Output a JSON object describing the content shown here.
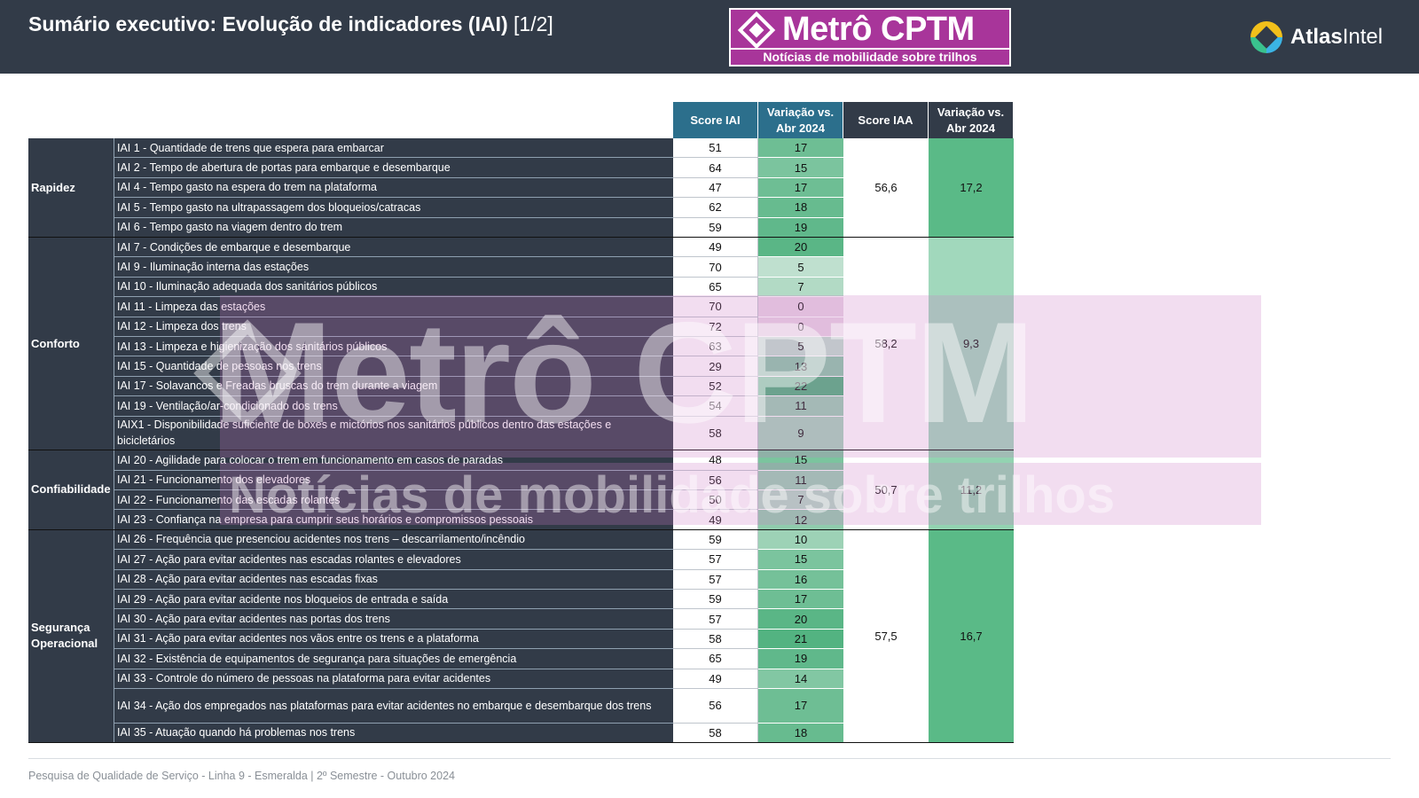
{
  "header": {
    "title": "Sumário executivo: Evolução de indicadores (IAI)",
    "page": "[1/2]"
  },
  "logos": {
    "metro_name": "Metrô CPTM",
    "metro_sub": "Notícias de mobilidade sobre trilhos",
    "atlas_bold": "Atlas",
    "atlas_rest": "Intel"
  },
  "columns": {
    "score_iai": "Score IAI",
    "var_iai": "Variação vs. Abr 2024",
    "score_iaa": "Score IAA",
    "var_iaa": "Variação vs. Abr 2024"
  },
  "groups": [
    {
      "name": "Rapidez",
      "iaa": "56,6",
      "iaa_var": "17,2",
      "iaa_color": "#5aba87",
      "rows": [
        {
          "label": "IAI 1 - Quantidade de trens que espera para embarcar",
          "score": "51",
          "var": "17"
        },
        {
          "label": "IAI 2 - Tempo de abertura de portas para embarque e desembarque",
          "score": "64",
          "var": "15"
        },
        {
          "label": "IAI 4 - Tempo gasto na espera do trem na plataforma",
          "score": "47",
          "var": "17"
        },
        {
          "label": "IAI 5 - Tempo gasto na ultrapassagem dos bloqueios/catracas",
          "score": "62",
          "var": "18"
        },
        {
          "label": "IAI 6 - Tempo gasto na viagem dentro do trem",
          "score": "59",
          "var": "19"
        }
      ]
    },
    {
      "name": "Conforto",
      "iaa": "58,2",
      "iaa_var": "9,3",
      "iaa_color": "#a1d8bc",
      "rows": [
        {
          "label": "IAI 7 - Condições de embarque e desembarque",
          "score": "49",
          "var": "20"
        },
        {
          "label": "IAI 9 - Iluminação interna das estações",
          "score": "70",
          "var": "5"
        },
        {
          "label": "IAI 10 - Iluminação adequada dos sanitários públicos",
          "score": "65",
          "var": "7"
        },
        {
          "label": "IAI 11 - Limpeza das estações",
          "score": "70",
          "var": "0"
        },
        {
          "label": "IAI 12 - Limpeza dos trens",
          "score": "72",
          "var": "0"
        },
        {
          "label": "IAI 13 - Limpeza e higienização dos sanitários públicos",
          "score": "63",
          "var": "5"
        },
        {
          "label": "IAI 15 - Quantidade de pessoas nos trens",
          "score": "29",
          "var": "13"
        },
        {
          "label": "IAI 17 - Solavancos e Freadas bruscas do trem durante a viagem",
          "score": "52",
          "var": "22"
        },
        {
          "label": "IAI 19 - Ventilação/ar-condicionado dos trens",
          "score": "54",
          "var": "11"
        },
        {
          "label": "IAIX1 - Disponibilidade suficiente de boxes e mictórios nos sanitários públicos dentro das estações e bicicletários",
          "score": "58",
          "var": "9",
          "tall": true
        }
      ]
    },
    {
      "name": "Confiabilidade",
      "iaa": "50,7",
      "iaa_var": "11,2",
      "iaa_color": "#93d3b1",
      "rows": [
        {
          "label": "IAI 20 - Agilidade para colocar o trem em funcionamento em casos de paradas",
          "score": "48",
          "var": "15"
        },
        {
          "label": "IAI 21 - Funcionamento dos elevadores",
          "score": "56",
          "var": "11"
        },
        {
          "label": "IAI 22 - Funcionamento das escadas rolantes",
          "score": "50",
          "var": "7"
        },
        {
          "label": "IAI 23 - Confiança na empresa para cumprir seus horários e compromissos pessoais",
          "score": "49",
          "var": "12"
        }
      ]
    },
    {
      "name": "Segurança Operacional",
      "iaa": "57,5",
      "iaa_var": "16,7",
      "iaa_color": "#5aba87",
      "rows": [
        {
          "label": "IAI 26 - Frequência que presenciou acidentes nos trens – descarrilamento/incêndio",
          "score": "59",
          "var": "10"
        },
        {
          "label": "IAI 27 - Ação para evitar acidentes nas escadas rolantes e elevadores",
          "score": "57",
          "var": "15"
        },
        {
          "label": "IAI 28 - Ação para evitar acidentes nas escadas fixas",
          "score": "57",
          "var": "16"
        },
        {
          "label": "IAI 29 - Ação para evitar acidente nos bloqueios de entrada e saída",
          "score": "59",
          "var": "17"
        },
        {
          "label": "IAI 30 - Ação para evitar acidentes nas portas dos trens",
          "score": "57",
          "var": "20"
        },
        {
          "label": "IAI 31 - Ação para evitar acidentes nos vãos entre os trens e a plataforma",
          "score": "58",
          "var": "21"
        },
        {
          "label": "IAI 32 - Existência de equipamentos de segurança para situações de emergência",
          "score": "65",
          "var": "19"
        },
        {
          "label": "IAI 33 - Controle do número de pessoas na plataforma para evitar acidentes",
          "score": "49",
          "var": "14"
        },
        {
          "label": "IAI 34 - Ação dos empregados nas plataformas para evitar acidentes no embarque e desembarque dos trens",
          "score": "56",
          "var": "17",
          "tall": true
        },
        {
          "label": "IAI 35 - Atuação quando há problemas nos trens",
          "score": "58",
          "var": "18"
        }
      ]
    }
  ],
  "footer": "Pesquisa de Qualidade de Serviço - Linha 9 - Esmeralda | 2º Semestre - Outubro 2024"
}
